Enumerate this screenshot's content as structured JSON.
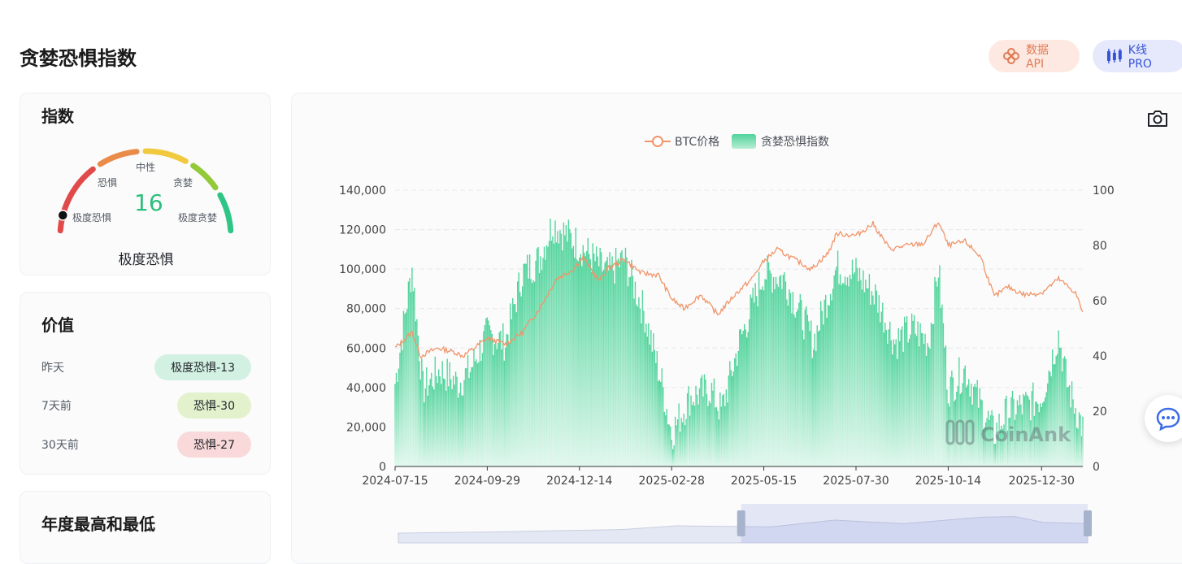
{
  "page": {
    "title": "贪婪恐惧指数"
  },
  "top_buttons": {
    "api_label": "数据API",
    "kline_label": "K线 PRO"
  },
  "index_card": {
    "title": "指数",
    "value": "16",
    "status": "极度恐惧",
    "gauge_labels": [
      "极度恐惧",
      "恐惧",
      "中性",
      "贪婪",
      "极度贪婪"
    ],
    "gauge_level": 0.16,
    "segment_colors": [
      "#e14a4a",
      "#e98c4a",
      "#f0c93e",
      "#94c93a",
      "#2fc585"
    ]
  },
  "value_card": {
    "title": "价值",
    "rows": [
      {
        "label": "昨天",
        "badge": "极度恐惧-13",
        "color": "#d3f1e3"
      },
      {
        "label": "7天前",
        "badge": "恐惧-30",
        "color": "#e3f1cd"
      },
      {
        "label": "30天前",
        "badge": "恐惧-27",
        "color": "#f9d9d9"
      }
    ]
  },
  "year_card": {
    "title": "年度最高和最低"
  },
  "chart_data": {
    "type": "bar",
    "legend": [
      "BTC价格",
      "贪婪恐惧指数"
    ],
    "watermark": "CoinAnk",
    "x_ticks": [
      "2024-07-15",
      "2024-09-29",
      "2024-12-14",
      "2025-02-28",
      "2025-05-15",
      "2025-07-30",
      "2025-10-14",
      "2025-12-30"
    ],
    "y_left_ticks": [
      "0",
      "20,000",
      "40,000",
      "60,000",
      "80,000",
      "100,000",
      "120,000",
      "140,000"
    ],
    "y_right_ticks": [
      "0",
      "20",
      "40",
      "60",
      "80",
      "100"
    ],
    "y_left_range": [
      0,
      140000
    ],
    "y_right_range": [
      0,
      100
    ],
    "grid": true,
    "colors": {
      "price": "#f0956a",
      "index_top": "#4fd39a",
      "index_bottom": "#d8f6e8"
    },
    "series": [
      {
        "name": "BTC价格",
        "axis": "left",
        "points": [
          [
            "2024-07-15",
            60000
          ],
          [
            "2024-07-29",
            68000
          ],
          [
            "2024-08-05",
            56000
          ],
          [
            "2024-08-19",
            60000
          ],
          [
            "2024-09-02",
            58000
          ],
          [
            "2024-09-09",
            56000
          ],
          [
            "2024-09-16",
            59000
          ],
          [
            "2024-09-29",
            65000
          ],
          [
            "2024-10-14",
            62000
          ],
          [
            "2024-10-28",
            68000
          ],
          [
            "2024-11-11",
            80000
          ],
          [
            "2024-11-25",
            95000
          ],
          [
            "2024-12-09",
            100000
          ],
          [
            "2024-12-17",
            106000
          ],
          [
            "2024-12-30",
            94000
          ],
          [
            "2025-01-06",
            100000
          ],
          [
            "2025-01-20",
            105000
          ],
          [
            "2025-02-03",
            98000
          ],
          [
            "2025-02-17",
            97000
          ],
          [
            "2025-02-28",
            85000
          ],
          [
            "2025-03-10",
            80000
          ],
          [
            "2025-03-24",
            87000
          ],
          [
            "2025-04-07",
            77000
          ],
          [
            "2025-04-21",
            87000
          ],
          [
            "2025-05-05",
            95000
          ],
          [
            "2025-05-15",
            104000
          ],
          [
            "2025-05-26",
            110000
          ],
          [
            "2025-06-09",
            105000
          ],
          [
            "2025-06-23",
            100000
          ],
          [
            "2025-07-07",
            108000
          ],
          [
            "2025-07-14",
            118000
          ],
          [
            "2025-07-30",
            117000
          ],
          [
            "2025-08-13",
            123000
          ],
          [
            "2025-08-27",
            110000
          ],
          [
            "2025-09-10",
            112000
          ],
          [
            "2025-09-24",
            113000
          ],
          [
            "2025-10-06",
            124000
          ],
          [
            "2025-10-14",
            112000
          ],
          [
            "2025-10-28",
            114000
          ],
          [
            "2025-11-10",
            106000
          ],
          [
            "2025-11-21",
            86000
          ],
          [
            "2025-12-02",
            91000
          ],
          [
            "2025-12-16",
            87000
          ],
          [
            "2025-12-30",
            88000
          ],
          [
            "2026-01-13",
            95000
          ],
          [
            "2026-01-27",
            88000
          ],
          [
            "2026-02-02",
            78000
          ]
        ]
      },
      {
        "name": "贪婪恐惧指数",
        "axis": "right",
        "points": [
          [
            "2024-07-15",
            30
          ],
          [
            "2024-07-29",
            72
          ],
          [
            "2024-08-07",
            28
          ],
          [
            "2024-08-21",
            35
          ],
          [
            "2024-09-05",
            30
          ],
          [
            "2024-09-15",
            35
          ],
          [
            "2024-09-29",
            48
          ],
          [
            "2024-10-14",
            45
          ],
          [
            "2024-10-28",
            70
          ],
          [
            "2024-11-11",
            75
          ],
          [
            "2024-11-22",
            88
          ],
          [
            "2024-12-14",
            80
          ],
          [
            "2025-01-06",
            70
          ],
          [
            "2025-01-20",
            75
          ],
          [
            "2025-02-06",
            55
          ],
          [
            "2025-02-20",
            30
          ],
          [
            "2025-02-28",
            12
          ],
          [
            "2025-03-15",
            25
          ],
          [
            "2025-04-01",
            28
          ],
          [
            "2025-04-10",
            20
          ],
          [
            "2025-04-25",
            45
          ],
          [
            "2025-05-15",
            70
          ],
          [
            "2025-06-01",
            68
          ],
          [
            "2025-06-15",
            55
          ],
          [
            "2025-06-25",
            45
          ],
          [
            "2025-07-14",
            72
          ],
          [
            "2025-07-30",
            70
          ],
          [
            "2025-08-15",
            62
          ],
          [
            "2025-08-31",
            45
          ],
          [
            "2025-09-15",
            50
          ],
          [
            "2025-09-28",
            45
          ],
          [
            "2025-10-06",
            72
          ],
          [
            "2025-10-14",
            28
          ],
          [
            "2025-10-28",
            35
          ],
          [
            "2025-11-10",
            22
          ],
          [
            "2025-11-21",
            12
          ],
          [
            "2025-12-02",
            20
          ],
          [
            "2025-12-16",
            22
          ],
          [
            "2025-12-30",
            25
          ],
          [
            "2026-01-13",
            48
          ],
          [
            "2026-01-20",
            30
          ],
          [
            "2026-02-02",
            14
          ]
        ]
      }
    ]
  }
}
